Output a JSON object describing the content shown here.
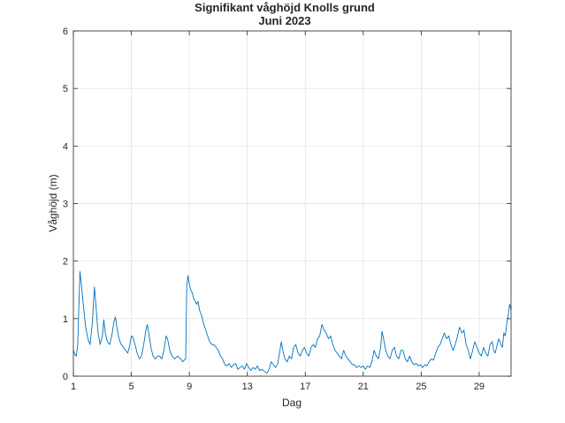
{
  "chart_data": {
    "type": "line",
    "title": "Signifikant våghöjd Knolls grund",
    "subtitle": "Juni 2023",
    "xlabel": "Dag",
    "ylabel": "Våghöjd (m)",
    "xlim": [
      1,
      31.2
    ],
    "ylim": [
      0,
      6
    ],
    "xticks": [
      1,
      5,
      9,
      13,
      17,
      21,
      25,
      29
    ],
    "yticks": [
      0,
      1,
      2,
      3,
      4,
      5,
      6
    ],
    "grid": true,
    "series": [
      {
        "color": "#0072BD",
        "points": [
          [
            1.0,
            0.45
          ],
          [
            1.1,
            0.38
          ],
          [
            1.2,
            0.35
          ],
          [
            1.3,
            0.55
          ],
          [
            1.45,
            1.82
          ],
          [
            1.55,
            1.6
          ],
          [
            1.7,
            1.2
          ],
          [
            1.85,
            0.85
          ],
          [
            2.0,
            0.65
          ],
          [
            2.15,
            0.55
          ],
          [
            2.3,
            0.9
          ],
          [
            2.45,
            1.55
          ],
          [
            2.55,
            1.25
          ],
          [
            2.7,
            0.75
          ],
          [
            2.85,
            0.55
          ],
          [
            3.0,
            0.7
          ],
          [
            3.1,
            0.98
          ],
          [
            3.2,
            0.75
          ],
          [
            3.35,
            0.6
          ],
          [
            3.5,
            0.55
          ],
          [
            3.65,
            0.7
          ],
          [
            3.8,
            0.95
          ],
          [
            3.9,
            1.03
          ],
          [
            4.0,
            0.85
          ],
          [
            4.15,
            0.65
          ],
          [
            4.3,
            0.55
          ],
          [
            4.45,
            0.5
          ],
          [
            4.6,
            0.45
          ],
          [
            4.75,
            0.4
          ],
          [
            4.9,
            0.55
          ],
          [
            5.0,
            0.7
          ],
          [
            5.1,
            0.68
          ],
          [
            5.25,
            0.55
          ],
          [
            5.4,
            0.4
          ],
          [
            5.55,
            0.3
          ],
          [
            5.7,
            0.35
          ],
          [
            5.85,
            0.55
          ],
          [
            6.0,
            0.8
          ],
          [
            6.1,
            0.9
          ],
          [
            6.2,
            0.75
          ],
          [
            6.35,
            0.5
          ],
          [
            6.5,
            0.35
          ],
          [
            6.65,
            0.3
          ],
          [
            6.8,
            0.35
          ],
          [
            6.95,
            0.35
          ],
          [
            7.1,
            0.3
          ],
          [
            7.25,
            0.45
          ],
          [
            7.4,
            0.7
          ],
          [
            7.5,
            0.65
          ],
          [
            7.65,
            0.45
          ],
          [
            7.8,
            0.35
          ],
          [
            8.0,
            0.3
          ],
          [
            8.2,
            0.35
          ],
          [
            8.4,
            0.3
          ],
          [
            8.55,
            0.25
          ],
          [
            8.65,
            0.28
          ],
          [
            8.75,
            0.3
          ],
          [
            8.82,
            1.55
          ],
          [
            8.9,
            1.75
          ],
          [
            9.0,
            1.6
          ],
          [
            9.1,
            1.5
          ],
          [
            9.2,
            1.45
          ],
          [
            9.3,
            1.35
          ],
          [
            9.4,
            1.3
          ],
          [
            9.5,
            1.25
          ],
          [
            9.6,
            1.3
          ],
          [
            9.7,
            1.15
          ],
          [
            9.85,
            1.05
          ],
          [
            10.0,
            0.9
          ],
          [
            10.2,
            0.75
          ],
          [
            10.4,
            0.6
          ],
          [
            10.55,
            0.55
          ],
          [
            10.7,
            0.55
          ],
          [
            10.85,
            0.5
          ],
          [
            11.0,
            0.45
          ],
          [
            11.15,
            0.35
          ],
          [
            11.3,
            0.3
          ],
          [
            11.45,
            0.2
          ],
          [
            11.6,
            0.18
          ],
          [
            11.75,
            0.22
          ],
          [
            11.9,
            0.15
          ],
          [
            12.05,
            0.2
          ],
          [
            12.2,
            0.22
          ],
          [
            12.35,
            0.12
          ],
          [
            12.5,
            0.15
          ],
          [
            12.65,
            0.18
          ],
          [
            12.8,
            0.12
          ],
          [
            12.95,
            0.22
          ],
          [
            13.1,
            0.15
          ],
          [
            13.25,
            0.1
          ],
          [
            13.4,
            0.15
          ],
          [
            13.55,
            0.12
          ],
          [
            13.7,
            0.18
          ],
          [
            13.85,
            0.1
          ],
          [
            14.0,
            0.12
          ],
          [
            14.2,
            0.08
          ],
          [
            14.35,
            0.05
          ],
          [
            14.5,
            0.12
          ],
          [
            14.65,
            0.25
          ],
          [
            14.8,
            0.2
          ],
          [
            14.95,
            0.15
          ],
          [
            15.1,
            0.22
          ],
          [
            15.25,
            0.45
          ],
          [
            15.35,
            0.6
          ],
          [
            15.45,
            0.45
          ],
          [
            15.6,
            0.3
          ],
          [
            15.75,
            0.25
          ],
          [
            15.9,
            0.35
          ],
          [
            16.05,
            0.3
          ],
          [
            16.2,
            0.5
          ],
          [
            16.35,
            0.55
          ],
          [
            16.5,
            0.4
          ],
          [
            16.65,
            0.35
          ],
          [
            16.8,
            0.45
          ],
          [
            16.95,
            0.5
          ],
          [
            17.1,
            0.4
          ],
          [
            17.25,
            0.35
          ],
          [
            17.4,
            0.5
          ],
          [
            17.55,
            0.55
          ],
          [
            17.7,
            0.5
          ],
          [
            17.85,
            0.65
          ],
          [
            18.0,
            0.7
          ],
          [
            18.15,
            0.9
          ],
          [
            18.3,
            0.8
          ],
          [
            18.45,
            0.75
          ],
          [
            18.6,
            0.65
          ],
          [
            18.75,
            0.7
          ],
          [
            18.9,
            0.55
          ],
          [
            19.05,
            0.45
          ],
          [
            19.2,
            0.4
          ],
          [
            19.35,
            0.35
          ],
          [
            19.5,
            0.3
          ],
          [
            19.65,
            0.45
          ],
          [
            19.8,
            0.35
          ],
          [
            19.95,
            0.3
          ],
          [
            20.1,
            0.25
          ],
          [
            20.25,
            0.2
          ],
          [
            20.4,
            0.2
          ],
          [
            20.55,
            0.15
          ],
          [
            20.7,
            0.18
          ],
          [
            20.85,
            0.15
          ],
          [
            21.0,
            0.18
          ],
          [
            21.15,
            0.12
          ],
          [
            21.3,
            0.18
          ],
          [
            21.45,
            0.15
          ],
          [
            21.6,
            0.25
          ],
          [
            21.75,
            0.45
          ],
          [
            21.9,
            0.35
          ],
          [
            22.05,
            0.3
          ],
          [
            22.2,
            0.5
          ],
          [
            22.3,
            0.78
          ],
          [
            22.4,
            0.65
          ],
          [
            22.55,
            0.45
          ],
          [
            22.7,
            0.35
          ],
          [
            22.85,
            0.3
          ],
          [
            23.0,
            0.45
          ],
          [
            23.15,
            0.5
          ],
          [
            23.3,
            0.35
          ],
          [
            23.45,
            0.3
          ],
          [
            23.6,
            0.45
          ],
          [
            23.75,
            0.45
          ],
          [
            23.9,
            0.3
          ],
          [
            24.05,
            0.25
          ],
          [
            24.2,
            0.35
          ],
          [
            24.35,
            0.25
          ],
          [
            24.5,
            0.2
          ],
          [
            24.65,
            0.22
          ],
          [
            24.8,
            0.18
          ],
          [
            24.95,
            0.2
          ],
          [
            25.1,
            0.15
          ],
          [
            25.25,
            0.2
          ],
          [
            25.4,
            0.18
          ],
          [
            25.55,
            0.25
          ],
          [
            25.7,
            0.3
          ],
          [
            25.85,
            0.28
          ],
          [
            26.0,
            0.4
          ],
          [
            26.15,
            0.5
          ],
          [
            26.3,
            0.55
          ],
          [
            26.45,
            0.65
          ],
          [
            26.6,
            0.75
          ],
          [
            26.75,
            0.65
          ],
          [
            26.9,
            0.7
          ],
          [
            27.05,
            0.55
          ],
          [
            27.2,
            0.45
          ],
          [
            27.35,
            0.55
          ],
          [
            27.5,
            0.7
          ],
          [
            27.65,
            0.85
          ],
          [
            27.8,
            0.75
          ],
          [
            27.95,
            0.8
          ],
          [
            28.1,
            0.55
          ],
          [
            28.25,
            0.45
          ],
          [
            28.4,
            0.3
          ],
          [
            28.55,
            0.45
          ],
          [
            28.7,
            0.6
          ],
          [
            28.85,
            0.5
          ],
          [
            29.0,
            0.4
          ],
          [
            29.15,
            0.35
          ],
          [
            29.3,
            0.5
          ],
          [
            29.45,
            0.4
          ],
          [
            29.6,
            0.35
          ],
          [
            29.75,
            0.55
          ],
          [
            29.9,
            0.6
          ],
          [
            30.0,
            0.45
          ],
          [
            30.1,
            0.4
          ],
          [
            30.2,
            0.5
          ],
          [
            30.35,
            0.65
          ],
          [
            30.5,
            0.55
          ],
          [
            30.6,
            0.5
          ],
          [
            30.7,
            0.75
          ],
          [
            30.8,
            0.7
          ],
          [
            30.9,
            0.9
          ],
          [
            31.0,
            1.05
          ],
          [
            31.1,
            1.25
          ],
          [
            31.2,
            1.15
          ]
        ]
      }
    ]
  }
}
